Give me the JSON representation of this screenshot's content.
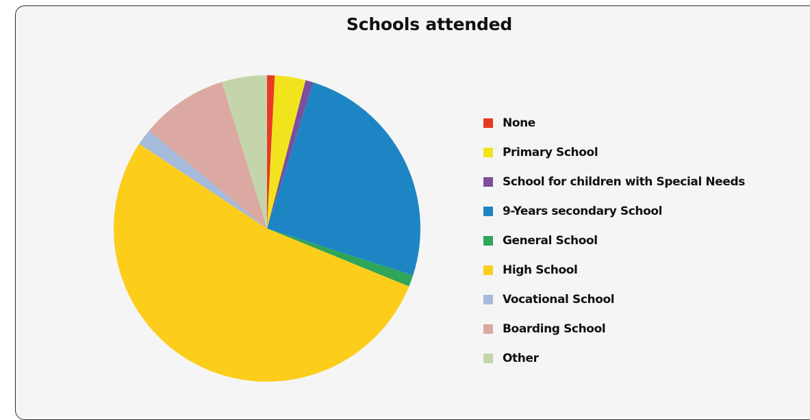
{
  "chart_data": {
    "type": "pie",
    "title": "Schools attended",
    "legend_position": "right",
    "slices": [
      {
        "label": "None",
        "value": 0.8,
        "color": "#e83a25"
      },
      {
        "label": "Primary School",
        "value": 3.2,
        "color": "#f2e41c"
      },
      {
        "label": "School for children with Special Needs",
        "value": 0.8,
        "color": "#7b4f9d"
      },
      {
        "label": "9-Years secondary School",
        "value": 24.8,
        "color": "#1e85c4"
      },
      {
        "label": "General School",
        "value": 1.2,
        "color": "#2fa55a"
      },
      {
        "label": "High School",
        "value": 52.5,
        "color": "#fccd1b"
      },
      {
        "label": "Vocational School",
        "value": 1.7,
        "color": "#a7bbdc"
      },
      {
        "label": "Boarding School",
        "value": 9.1,
        "color": "#dba9a1"
      },
      {
        "label": "Other",
        "value": 4.7,
        "color": "#c4d5ab"
      }
    ]
  }
}
